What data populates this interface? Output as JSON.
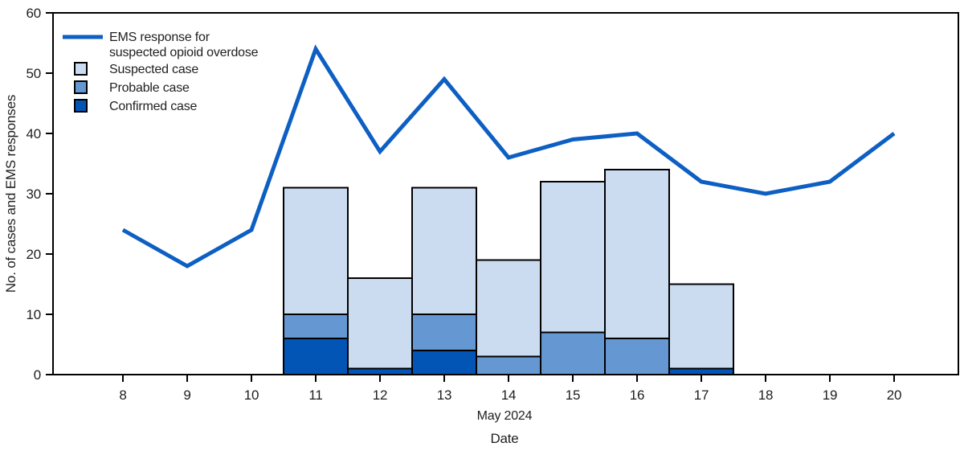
{
  "figure": {
    "background": "#ffffff",
    "text_color": "#1f1f1f"
  },
  "legend": {
    "line_label_line1": "EMS response for",
    "line_label_line2": "suspected opioid overdose",
    "items": [
      {
        "label": "Suspected case"
      },
      {
        "label": "Probable case"
      },
      {
        "label": "Confirmed case"
      }
    ]
  },
  "chart_data": {
    "type": "line+stacked-bar",
    "title": "",
    "xlabel": "Date",
    "x_axis_month_label": "May 2024",
    "ylabel": "No. of cases and EMS responses",
    "ylim": [
      0,
      60
    ],
    "yticks": [
      0,
      10,
      20,
      30,
      40,
      50,
      60
    ],
    "x_days": [
      8,
      9,
      10,
      11,
      12,
      13,
      14,
      15,
      16,
      17,
      18,
      19,
      20
    ],
    "grid": "off",
    "legend_position": "top-left-inside",
    "line_series": {
      "name": "EMS response for suspected opioid overdose",
      "color": "#0d5fc3",
      "values": [
        24,
        18,
        24,
        54,
        37,
        49,
        36,
        39,
        40,
        32,
        30,
        32,
        40
      ]
    },
    "bar_days": [
      11,
      12,
      13,
      14,
      15,
      16,
      17
    ],
    "bar_series": [
      {
        "name": "Confirmed case",
        "color": "#0255b4",
        "values": [
          6,
          1,
          4,
          0,
          0,
          0,
          1
        ]
      },
      {
        "name": "Probable case",
        "color": "#6598d2",
        "values": [
          4,
          0,
          6,
          3,
          7,
          6,
          0
        ]
      },
      {
        "name": "Suspected case",
        "color": "#cbdcf1",
        "values": [
          21,
          15,
          21,
          16,
          25,
          28,
          14
        ]
      }
    ],
    "bar_totals": [
      31,
      16,
      31,
      19,
      32,
      34,
      15
    ],
    "bar_border_color": "#000000",
    "axis_color": "#000000"
  }
}
